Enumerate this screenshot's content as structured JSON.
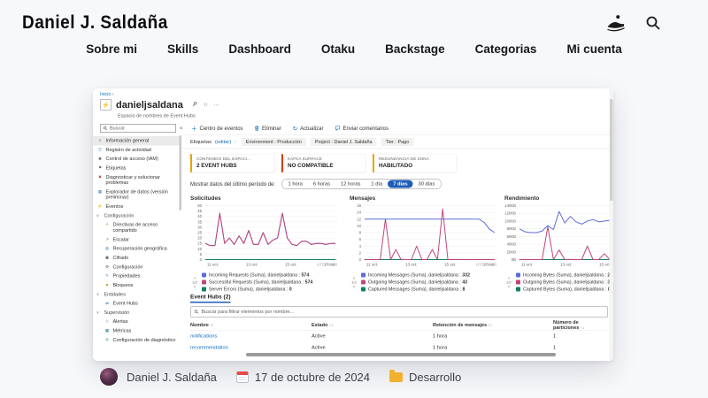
{
  "site": {
    "logo": "Daniel J. Saldaña",
    "nav": [
      "Sobre mi",
      "Skills",
      "Dashboard",
      "Otaku",
      "Backstage",
      "Categorias",
      "Mi cuenta"
    ]
  },
  "post": {
    "author": "Daniel J. Saldaña",
    "date": "17 de octubre de 2024",
    "category": "Desarrollo"
  },
  "azure": {
    "breadcrumb": "Inicio",
    "breadcrumb_sep": "›",
    "title": "danieljsaldana",
    "title_more": "···",
    "subtitle": "Espacio de nombres de Event Hubs",
    "search_placeholder": "Buscar",
    "collapse_glyph": "«",
    "toolbar": [
      {
        "label": "Centro de eventos"
      },
      {
        "label": "Eliminar"
      },
      {
        "label": "Actualizar"
      },
      {
        "label": "Enviar comentarios"
      }
    ],
    "sidebar": [
      {
        "label": "Información general",
        "icon": "≡",
        "icon_color": "#5b5f66",
        "selected": true
      },
      {
        "label": "Registro de actividad",
        "icon": "☰",
        "icon_color": "#2e7dd1"
      },
      {
        "label": "Control de acceso (IAM)",
        "icon": "◉",
        "icon_color": "#5b5f66"
      },
      {
        "label": "Etiquetas",
        "icon": "⚑",
        "icon_color": "#5b5f66"
      },
      {
        "label": "Diagnosticar y solucionar problemas",
        "icon": "✖",
        "icon_color": "#b0492f"
      },
      {
        "label": "Explorador de datos (versión preliminar)",
        "icon": "▦",
        "icon_color": "#3a7ec2"
      },
      {
        "label": "Eventos",
        "icon": "⚡",
        "icon_color": "#d97e10"
      },
      {
        "label": "Configuración",
        "group": true
      },
      {
        "label": "Directivas de acceso compartido",
        "icon": "✦",
        "icon_color": "#c9a227",
        "indent": true
      },
      {
        "label": "Escalar",
        "icon": "↗",
        "icon_color": "#5b5f66",
        "indent": true
      },
      {
        "label": "Recuperación geográfica",
        "icon": "◍",
        "icon_color": "#2e7dd1",
        "indent": true
      },
      {
        "label": "Cifrado",
        "icon": "▣",
        "icon_color": "#5b5f66",
        "indent": true
      },
      {
        "label": "Configuración",
        "icon": "⚙",
        "icon_color": "#5b5f66",
        "indent": true
      },
      {
        "label": "Propiedades",
        "icon": "✎",
        "icon_color": "#2e7dd1",
        "indent": true
      },
      {
        "label": "Bloqueos",
        "icon": "■",
        "icon_color": "#c9a227",
        "indent": true
      },
      {
        "label": "Entidades",
        "group": true
      },
      {
        "label": "Event Hubs",
        "icon": "⇄",
        "icon_color": "#3a7ec2",
        "indent": true
      },
      {
        "label": "Supervisión",
        "group": true
      },
      {
        "label": "Alertas",
        "icon": "⚠",
        "icon_color": "#2e7dd1",
        "indent": true
      },
      {
        "label": "Métricas",
        "icon": "▦",
        "icon_color": "#18838f",
        "indent": true
      },
      {
        "label": "Configuración de diagnóstico",
        "icon": "⚙",
        "icon_color": "#4aa564",
        "indent": true
      }
    ],
    "tags": {
      "label": "Etiquetas",
      "edit": "(editar)",
      "colon": ":",
      "pills": [
        "Environment : Producción",
        "Project : Daniel J. Saldaña",
        "Tier : Pago"
      ]
    },
    "badges": [
      {
        "heading": "CONTENIDO DEL ESPACI...",
        "value": "2 EVENT HUBS",
        "accent": "#eaa300"
      },
      {
        "heading": "KAFKA SURFACE",
        "value": "NO COMPATIBLE",
        "accent": "#d83b01"
      },
      {
        "heading": "REDUNDANCIA DE ZONA",
        "value": "HABILITADO",
        "accent": "#eaa300"
      }
    ],
    "period": {
      "label": "Mostrar datos del último período de:",
      "options": [
        {
          "label": "1 hora"
        },
        {
          "label": "6 horas"
        },
        {
          "label": "12 horas"
        },
        {
          "label": "1 día"
        },
        {
          "label": "7 días",
          "selected": true
        },
        {
          "label": "30 días"
        }
      ]
    },
    "event_hubs": {
      "title": "Event Hubs (2)",
      "filter_placeholder": "Buscar para filtrar elementos por nombre...",
      "sort_icon": "↑↓",
      "columns": [
        "Nombre",
        "Estado",
        "Retención de mensajes",
        "Número de particiones"
      ],
      "rows": [
        {
          "nombre": "notifications",
          "estado": "Active",
          "retencion": "1 hora",
          "particiones": "1"
        },
        {
          "nombre": "recommendation",
          "estado": "Active",
          "retencion": "1 hora",
          "particiones": "1"
        }
      ]
    }
  },
  "chart_data": [
    {
      "type": "line",
      "title": "Solicitudes",
      "ylim": [
        0,
        50
      ],
      "yticks": [
        50,
        45,
        40,
        35,
        30,
        25,
        20,
        15,
        10,
        5,
        0
      ],
      "xticks": [
        "11 oct.",
        "13 oct.",
        "15 oct.",
        "17 oct."
      ],
      "utc_note": "UTC+02:00",
      "legend_page": "1/2",
      "grid": true,
      "legend_position": "bottom",
      "series": [
        {
          "name": "Incoming Requests (Suma), danieljsaldana",
          "total": "574",
          "color": "#5b6dd6",
          "values": [
            15,
            13,
            13,
            43,
            15,
            20,
            14,
            22,
            15,
            27,
            14,
            14,
            25,
            14,
            18,
            20,
            43,
            20,
            14,
            13,
            17,
            17,
            14,
            15,
            15,
            14,
            15,
            15
          ]
        },
        {
          "name": "Successful Requests (Suma), danieljsaldana",
          "total": "574",
          "color": "#c0457c",
          "values": [
            15,
            13,
            13,
            43,
            15,
            20,
            14,
            22,
            15,
            27,
            14,
            14,
            25,
            14,
            18,
            20,
            43,
            20,
            14,
            13,
            17,
            17,
            14,
            15,
            15,
            14,
            15,
            15
          ]
        },
        {
          "name": "Server Errors (Suma), danieljsaldana",
          "total": "0",
          "color": "#10805f",
          "values": [
            0,
            0,
            0,
            0,
            0,
            0,
            0,
            0,
            0,
            0,
            0,
            0,
            0,
            0,
            0,
            0,
            0,
            0,
            0,
            0,
            0,
            0,
            0,
            0,
            0,
            0,
            0,
            0
          ]
        }
      ]
    },
    {
      "type": "line",
      "title": "Mensajes",
      "ylim": [
        0,
        16
      ],
      "yticks": [
        16,
        14,
        12,
        10,
        8,
        6,
        4,
        2,
        0
      ],
      "xticks": [
        "11 oct.",
        "13 oct.",
        "15 oct.",
        "17 oct."
      ],
      "utc_note": "UTC+02:00",
      "legend_page": "1/2",
      "grid": true,
      "legend_position": "bottom",
      "series": [
        {
          "name": "Incoming Messages (Suma), danieljsaldana",
          "total": "332",
          "color": "#5b6dd6",
          "values": [
            12,
            12,
            12,
            12,
            12,
            12,
            12,
            12,
            12,
            12,
            12,
            12,
            12,
            12,
            12,
            12,
            12,
            12,
            12,
            12,
            12,
            12,
            12,
            11,
            9,
            8
          ]
        },
        {
          "name": "Outgoing Messages (Suma), danieljsaldana",
          "total": "43",
          "color": "#c0457c",
          "values": [
            0,
            0,
            0,
            0,
            12,
            0,
            3,
            0,
            0,
            0,
            4,
            0,
            0,
            3,
            0,
            15,
            0,
            0,
            0,
            0,
            0,
            0,
            0,
            0,
            0,
            0
          ]
        },
        {
          "name": "Captured Messages (Suma), danieljsaldana",
          "total": "8",
          "color": "#10805f",
          "values": [
            0,
            0,
            0,
            0,
            0,
            0,
            0,
            0,
            0,
            0,
            0,
            0,
            0,
            0,
            0,
            0,
            0,
            0,
            0,
            0,
            0,
            0,
            0,
            0,
            0,
            0
          ]
        }
      ]
    },
    {
      "type": "line",
      "title": "Rendimiento",
      "ylim": [
        0,
        140
      ],
      "yticks": [
        "140KB",
        "120KB",
        "100KB",
        "80KB",
        "60KB",
        "40KB",
        "20KB",
        "0B"
      ],
      "xticks": [
        "11 oct.",
        "13 oct.",
        "15 oct."
      ],
      "utc_note": "",
      "legend_page": "1/2",
      "grid": true,
      "legend_position": "bottom",
      "series": [
        {
          "name": "Incoming Bytes (Suma), danieljsaldana",
          "total": "2,32MB",
          "color": "#5b6dd6",
          "values": [
            80,
            72,
            70,
            70,
            74,
            88,
            78,
            125,
            95,
            112,
            98,
            92,
            100,
            104,
            98,
            100,
            102,
            96,
            85,
            105,
            68,
            80,
            115,
            108
          ]
        },
        {
          "name": "Outgoing Bytes (Suma), danieljsaldana",
          "total": "371KB",
          "color": "#c0457c",
          "values": [
            0,
            0,
            0,
            0,
            0,
            85,
            0,
            25,
            0,
            0,
            0,
            0,
            35,
            0,
            0,
            15,
            0,
            0,
            90,
            65,
            0,
            0,
            0,
            0
          ]
        },
        {
          "name": "Captured Bytes (Suma), danieljsaldana",
          "total": "0B",
          "color": "#10805f",
          "values": [
            0,
            0,
            0,
            0,
            0,
            0,
            0,
            0,
            0,
            0,
            0,
            0,
            0,
            0,
            0,
            0,
            0,
            0,
            0,
            0,
            0,
            0,
            0,
            0
          ]
        }
      ]
    }
  ]
}
